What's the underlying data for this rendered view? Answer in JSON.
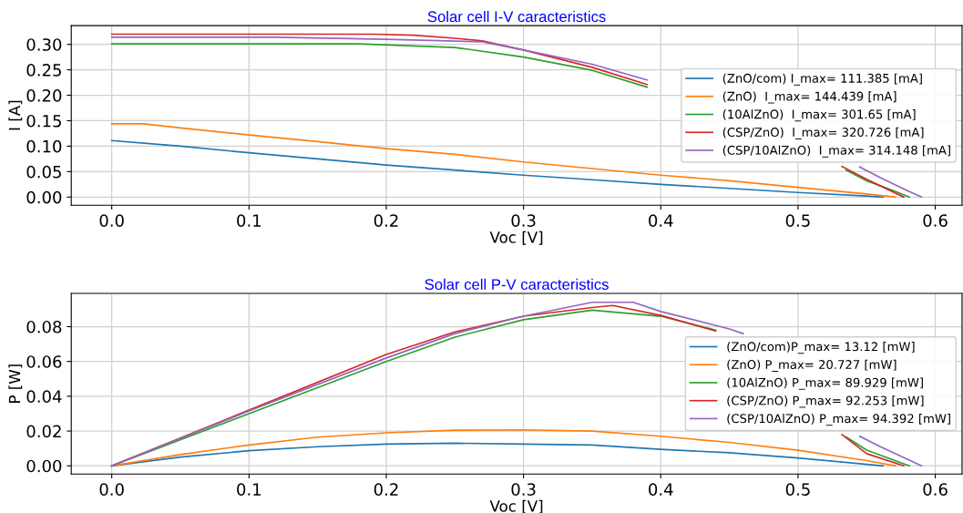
{
  "chart_data": [
    {
      "type": "line",
      "title": "Solar cell I-V caracteristics",
      "xlabel": "Voc [V]",
      "ylabel": "I [A]",
      "xlim": [
        -0.0295,
        0.6195
      ],
      "ylim": [
        -0.016,
        0.3368
      ],
      "xticks": [
        {
          "value": 0.0,
          "label": "0.0"
        },
        0.1,
        0.2,
        0.3,
        0.4,
        0.5,
        0.6
      ],
      "yticks": [
        {
          "value": 0.0,
          "label": "0.00"
        },
        0.05,
        {
          "value": 0.1,
          "label": "0.10"
        },
        0.15,
        {
          "value": 0.2,
          "label": "0.20"
        },
        0.25,
        {
          "value": 0.3,
          "label": "0.30"
        }
      ],
      "grid": true,
      "legend": "center right",
      "series": [
        {
          "name": "(ZnO/com) I_max= 111.385 [mA]",
          "color": "#1f77b4",
          "x": [
            0,
            0.05,
            0.1,
            0.15,
            0.2,
            0.25,
            0.3,
            0.35,
            0.4,
            0.45,
            0.5,
            0.55,
            0.562
          ],
          "values": [
            0.111,
            0.1,
            0.087,
            0.075,
            0.063,
            0.053,
            0.043,
            0.034,
            0.025,
            0.017,
            0.009,
            0.002,
            0.0
          ]
        },
        {
          "name": "(ZnO)  I_max= 144.439 [mA]",
          "color": "#ff7f0e",
          "x": [
            0,
            0.023,
            0.05,
            0.1,
            0.15,
            0.2,
            0.25,
            0.3,
            0.35,
            0.4,
            0.45,
            0.5,
            0.55,
            0.571
          ],
          "values": [
            0.144,
            0.144,
            0.136,
            0.122,
            0.109,
            0.095,
            0.084,
            0.069,
            0.056,
            0.043,
            0.032,
            0.019,
            0.006,
            0.0
          ]
        },
        {
          "name": "(10AlZnO)  I_max= 301.65 [mA]",
          "color": "#2ca02c",
          "x": [
            0,
            0.1,
            0.18,
            0.25,
            0.3,
            0.35,
            0.39,
            0.48,
            0.535,
            0.55,
            0.57,
            0.581
          ],
          "values": [
            0.301,
            0.301,
            0.301,
            0.294,
            0.275,
            0.249,
            0.216,
            null,
            0.053,
            0.032,
            0.012,
            0.0
          ]
        },
        {
          "name": "(CSP/ZnO)  I_max= 320.726 [mA]",
          "color": "#d62728",
          "x": [
            0,
            0.19,
            0.22,
            0.25,
            0.27,
            0.3,
            0.35,
            0.39,
            0.48,
            0.532,
            0.55,
            0.577
          ],
          "values": [
            0.32,
            0.32,
            0.318,
            0.312,
            0.307,
            0.289,
            0.255,
            0.221,
            null,
            0.06,
            0.035,
            0.0
          ]
        },
        {
          "name": "(CSP/10AlZnO)  I_max= 314.148 [mA]",
          "color": "#9467bd",
          "x": [
            0,
            0.12,
            0.2,
            0.27,
            0.3,
            0.35,
            0.39,
            0.48,
            0.545,
            0.56,
            0.58,
            0.59
          ],
          "values": [
            0.314,
            0.314,
            0.31,
            0.305,
            0.289,
            0.261,
            0.23,
            null,
            0.059,
            0.038,
            0.012,
            0.0
          ]
        }
      ]
    },
    {
      "type": "line",
      "title": "Solar cell P-V caracteristics",
      "xlabel": "Voc [V]",
      "ylabel": "P [W]",
      "xlim": [
        -0.0295,
        0.6195
      ],
      "ylim": [
        -0.0047,
        0.0991
      ],
      "xticks": [
        {
          "value": 0.0,
          "label": "0.0"
        },
        0.1,
        0.2,
        0.3,
        0.4,
        0.5,
        0.6
      ],
      "yticks": [
        {
          "value": 0.0,
          "label": "0.00"
        },
        0.02,
        0.04,
        0.06,
        0.08
      ],
      "grid": true,
      "legend": "center right",
      "series": [
        {
          "name": "(ZnO/com)P_max= 13.12 [mW]",
          "color": "#1f77b4",
          "x": [
            0,
            0.05,
            0.1,
            0.15,
            0.2,
            0.25,
            0.3,
            0.35,
            0.4,
            0.45,
            0.5,
            0.562
          ],
          "values": [
            0.0,
            0.005,
            0.0087,
            0.011,
            0.0125,
            0.013,
            0.0125,
            0.012,
            0.0095,
            0.0075,
            0.0045,
            0.0
          ]
        },
        {
          "name": "(ZnO) P_max= 20.727 [mW]",
          "color": "#ff7f0e",
          "x": [
            0,
            0.05,
            0.1,
            0.15,
            0.2,
            0.25,
            0.3,
            0.35,
            0.4,
            0.45,
            0.5,
            0.55,
            0.571
          ],
          "values": [
            0.0,
            0.0065,
            0.012,
            0.0165,
            0.019,
            0.0205,
            0.0207,
            0.02,
            0.017,
            0.0135,
            0.009,
            0.003,
            0.0
          ]
        },
        {
          "name": "(10AlZnO) P_max= 89.929 [mW]",
          "color": "#2ca02c",
          "x": [
            0,
            0.1,
            0.2,
            0.25,
            0.3,
            0.35,
            0.4,
            0.44,
            0.49,
            0.535,
            0.55,
            0.581
          ],
          "values": [
            0.0,
            0.03,
            0.06,
            0.074,
            0.084,
            0.0895,
            0.086,
            0.078,
            null,
            0.0166,
            0.009,
            0.0
          ]
        },
        {
          "name": "(CSP/ZnO) P_max= 92.253 [mW]",
          "color": "#d62728",
          "x": [
            0,
            0.1,
            0.2,
            0.25,
            0.3,
            0.35,
            0.365,
            0.4,
            0.44,
            0.49,
            0.532,
            0.55,
            0.577
          ],
          "values": [
            0.0,
            0.032,
            0.064,
            0.077,
            0.086,
            0.091,
            0.0922,
            0.0865,
            0.0775,
            null,
            0.018,
            0.007,
            0.0
          ]
        },
        {
          "name": "(CSP/10AlZnO) P_max= 94.392 [mW]",
          "color": "#9467bd",
          "x": [
            0,
            0.1,
            0.2,
            0.25,
            0.3,
            0.35,
            0.38,
            0.4,
            0.45,
            0.46,
            0.5,
            0.545,
            0.56,
            0.59
          ],
          "values": [
            0.0,
            0.0315,
            0.062,
            0.076,
            0.086,
            0.094,
            0.094,
            0.0887,
            0.0787,
            0.076,
            null,
            0.017,
            0.011,
            0.0
          ]
        }
      ]
    }
  ]
}
